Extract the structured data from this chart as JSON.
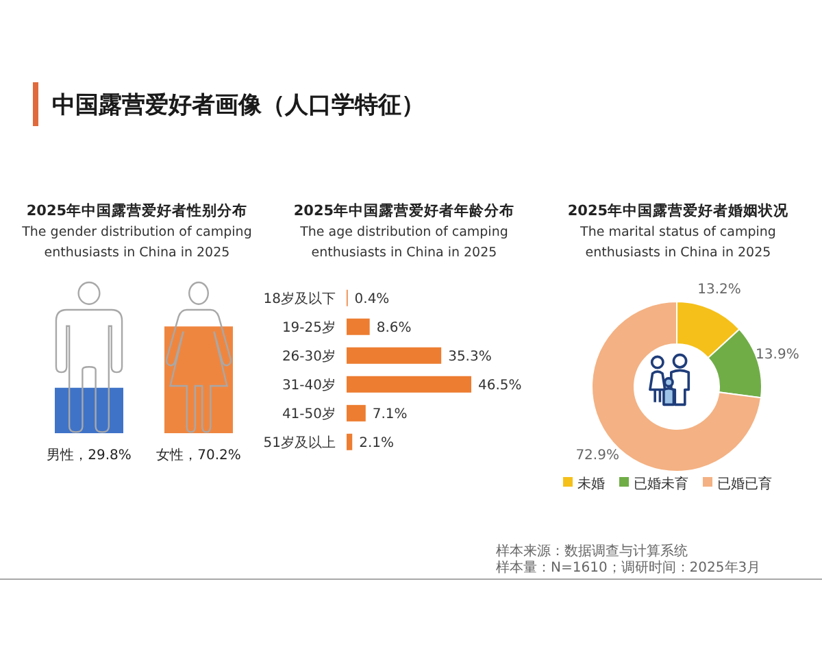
{
  "chart_data": [
    {
      "type": "other",
      "title": "中国露营爱好者画像（人口学特征）"
    },
    {
      "type": "bar",
      "title": "2025年中国露营爱好者性别分布",
      "subtitle": "The gender distribution of camping enthusiasts in China in 2025",
      "categories": [
        null,
        null
      ],
      "values": [
        29.8,
        70.2
      ],
      "colors": [
        "#3f73c8",
        "#ef8640"
      ],
      "value_labels": [
        "男性，29.8%",
        "女性，70.2%"
      ]
    },
    {
      "type": "bar",
      "orientation": "horizontal",
      "title": "2025年中国露营爱好者年龄分布",
      "subtitle": "The age distribution of camping enthusiasts in China in 2025",
      "categories": [
        "18岁及以下",
        "19-25岁",
        "26-30岁",
        "31-40岁",
        "41-50岁",
        "51岁及以上"
      ],
      "values": [
        0.4,
        8.6,
        35.3,
        46.5,
        7.1,
        2.1
      ],
      "color": "#ed7d31",
      "value_labels": [
        "0.4%",
        "8.6%",
        "35.3%",
        "46.5%",
        "7.1%",
        "2.1%"
      ]
    },
    {
      "type": "donut",
      "title": "2025年中国露营爱好者婚姻状况",
      "subtitle": "The marital status of camping enthusiasts in China in 2025",
      "categories": [
        "未婚",
        "已婚未育",
        "已婚已育"
      ],
      "values": [
        13.2,
        13.9,
        72.9
      ],
      "colors": [
        "#f5c01a",
        "#70ad47",
        "#f4b183"
      ],
      "value_labels": [
        "13.2%",
        "13.9%",
        "72.9%"
      ],
      "legend": "bottom"
    },
    {
      "type": "other",
      "annotations": [
        "样本来源：数据调查与计算系统",
        "样本量：N=1610；调研时间：2025年3月"
      ]
    }
  ]
}
